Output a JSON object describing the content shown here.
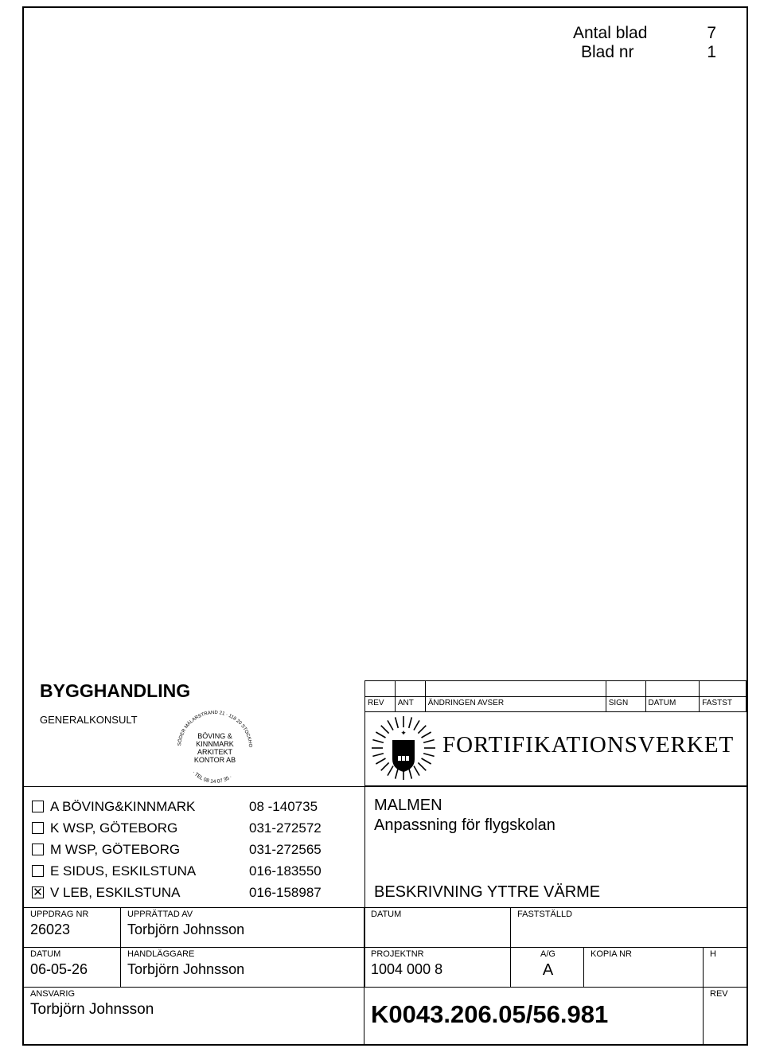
{
  "header": {
    "antal_blad_label": "Antal blad",
    "antal_blad_value": "7",
    "blad_nr_label": "Blad nr",
    "blad_nr_value": "1"
  },
  "doc_type": "BYGGHANDLING",
  "generalkonsult_label": "GENERALKONSULT",
  "bk_logo": {
    "line1": "BÖVING &",
    "line2": "KINNMARK",
    "line3": "ARKITEKT",
    "line4": "KONTOR AB",
    "ring_top": "SÖDER MÄLARSTRAND 21 · 118 20 STOCKHOLM",
    "ring_bottom": "· TEL 08 14 07 35 ·"
  },
  "revhdr": {
    "rev": "REV",
    "ant": "ANT",
    "andringen": "ÄNDRINGEN AVSER",
    "sign": "SIGN",
    "datum": "DATUM",
    "fastst": "FASTST"
  },
  "fortverket": "FORTIFIKATIONSVERKET",
  "consultants": [
    {
      "checked": false,
      "code": "A",
      "name": "BÖVING&KINNMARK",
      "phone": "08 -140735"
    },
    {
      "checked": false,
      "code": "K",
      "name": "WSP, GÖTEBORG",
      "phone": "031-272572"
    },
    {
      "checked": false,
      "code": "M",
      "name": "WSP, GÖTEBORG",
      "phone": "031-272565"
    },
    {
      "checked": false,
      "code": "E",
      "name": "SIDUS, ESKILSTUNA",
      "phone": "016-183550"
    },
    {
      "checked": true,
      "code": "V",
      "name": "LEB, ESKILSTUNA",
      "phone": "016-158987"
    }
  ],
  "project": {
    "title": "MALMEN",
    "subtitle": "Anpassning för flygskolan",
    "description": "BESKRIVNING YTTRE VÄRME"
  },
  "row1": {
    "uppdrag_lbl": "UPPDRAG NR",
    "uppdrag_val": "26023",
    "uppratt_lbl": "UPPRÄTTAD AV",
    "uppratt_val": "Torbjörn Johnsson",
    "datum_lbl": "DATUM",
    "datum_val": "",
    "fastst_lbl": "FASTSTÄLLD",
    "fastst_val": ""
  },
  "row2": {
    "datum_lbl": "DATUM",
    "datum_val": "06-05-26",
    "handl_lbl": "HANDLÄGGARE",
    "handl_val": "Torbjörn Johnsson",
    "projnr_lbl": "PROJEKTNR",
    "projnr_val": "1004 000 8",
    "ag_lbl": "A/G",
    "ag_val": "A",
    "kopianr_lbl": "KOPIA NR",
    "kopianr_val": "",
    "h_lbl": "H",
    "h_val": ""
  },
  "row3": {
    "ansv_lbl": "ANSVARIG",
    "ansv_val": "Torbjörn Johnsson",
    "drawing_no": "K0043.206.05/56.981",
    "rev_lbl": "REV",
    "rev_val": ""
  }
}
